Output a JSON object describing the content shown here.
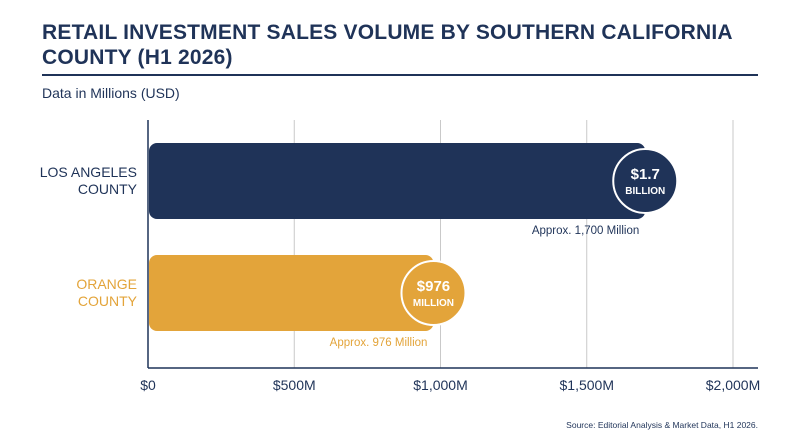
{
  "title": "RETAIL INVESTMENT SALES VOLUME BY SOUTHERN CALIFORNIA COUNTY (H1 2026)",
  "subtitle": "Data in Millions (USD)",
  "source": "Source: Editorial Analysis & Market Data, H1 2026.",
  "colors": {
    "navy": "#1f3358",
    "gold": "#e3a43a",
    "grid": "#c9c9c9"
  },
  "chart_data": {
    "type": "bar",
    "orientation": "horizontal",
    "title": "RETAIL INVESTMENT SALES VOLUME BY SOUTHERN CALIFORNIA COUNTY (H1 2026)",
    "subtitle": "Data in Millions (USD)",
    "xlim": [
      0,
      2000
    ],
    "grid": true,
    "x_ticks": [
      0,
      500,
      1000,
      1500,
      2000
    ],
    "x_tick_labels": [
      "$0",
      "$500M",
      "$1,000M",
      "$1,500M",
      "$2,000M"
    ],
    "categories": [
      {
        "label_lines": [
          "LOS ANGELES",
          "COUNTY"
        ],
        "value": 1700,
        "color": "#1f3358",
        "badge_value": "$1.7",
        "badge_unit": "BILLION",
        "annotation": "Approx. 1,700 Million"
      },
      {
        "label_lines": [
          "ORANGE",
          "COUNTY"
        ],
        "value": 976,
        "color": "#e3a43a",
        "badge_value": "$976",
        "badge_unit": "MILLION",
        "annotation": "Approx. 976 Million"
      }
    ]
  }
}
